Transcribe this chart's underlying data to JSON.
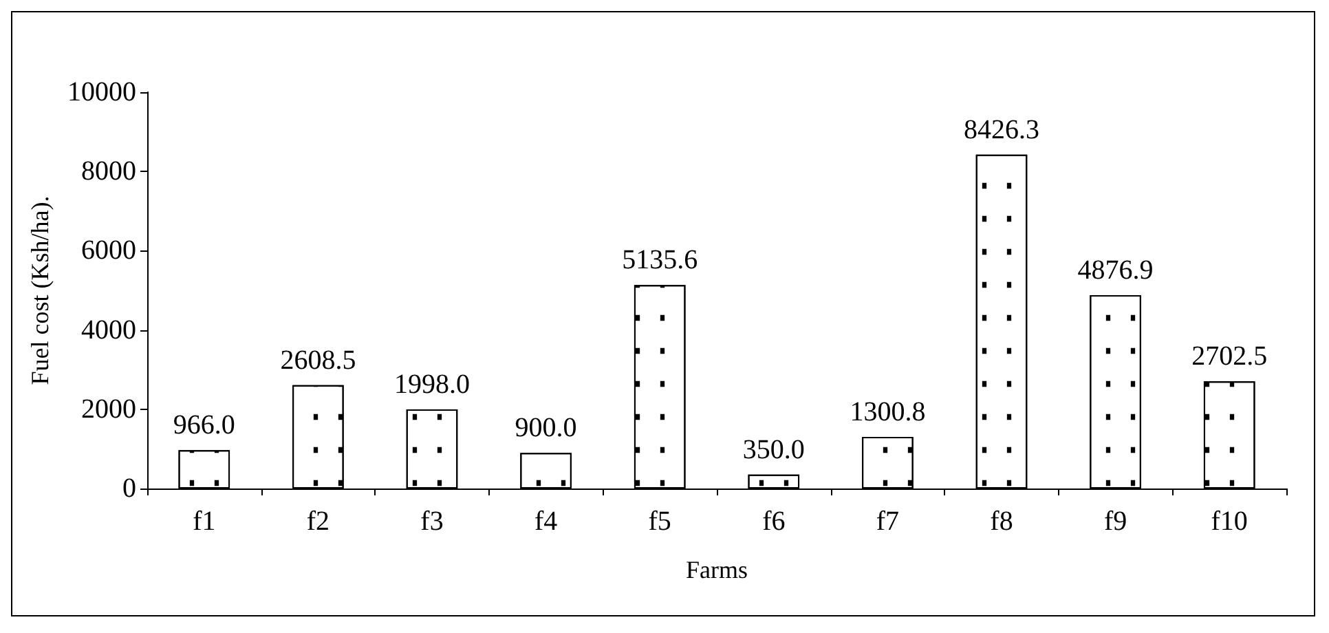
{
  "chart_data": {
    "type": "bar",
    "xlabel": "Farms",
    "ylabel": "Fuel cost (Ksh/ha).",
    "categories": [
      "f1",
      "f2",
      "f3",
      "f4",
      "f5",
      "f6",
      "f7",
      "f8",
      "f9",
      "f10"
    ],
    "values": [
      966.0,
      2608.5,
      1998.0,
      900.0,
      5135.6,
      350.0,
      1300.8,
      8426.3,
      4876.9,
      2702.5
    ],
    "value_labels": [
      "966.0",
      "2608.5",
      "1998.0",
      "900.0",
      "5135.6",
      "350.0",
      "1300.8",
      "8426.3",
      "4876.9",
      "2702.5"
    ],
    "color": "#ffffff",
    "ylim": [
      0,
      10000
    ],
    "yticks": [
      0,
      2000,
      4000,
      6000,
      8000,
      10000
    ],
    "grid": false
  }
}
